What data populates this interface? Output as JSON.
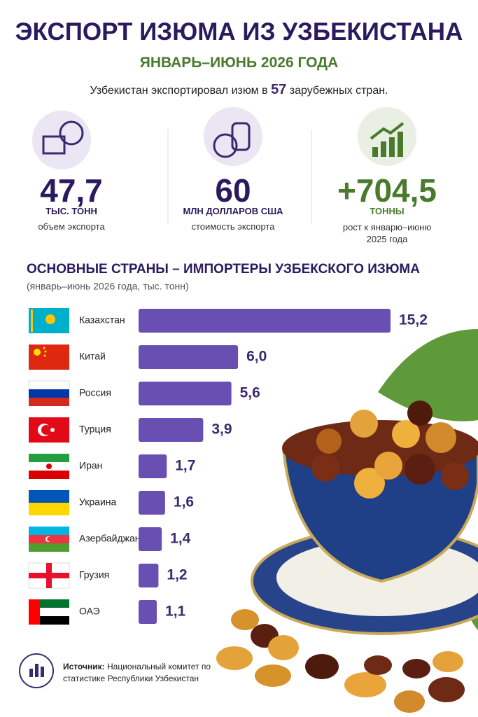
{
  "header": {
    "title": "ЭКСПОРТ ИЗЮМА ИЗ УЗБЕКИСТАНА",
    "subtitle": "ЯНВАРЬ–ИЮНЬ 2026 ГОДА",
    "lead_before": "Узбекистан экспортировал изюм в",
    "lead_number": "57",
    "lead_after": "зарубежных стран."
  },
  "stats": [
    {
      "value": "47,7",
      "unit": "ТЫС. ТОНН",
      "label": "объем экспорта"
    },
    {
      "value": "60",
      "unit": "МЛН ДОЛЛАРОВ США",
      "label": "стоимость экспорта"
    },
    {
      "value": "+704,5",
      "unit": "ТОННЫ",
      "label": "рост к январю–июню 2025 года"
    }
  ],
  "chart_data": {
    "type": "hbar",
    "title": "ОСНОВНЫЕ СТРАНЫ – ИМПОРТЕРЫ УЗБЕКСКОГО ИЗЮМА",
    "subtitle": "(январь–июнь 2026 года, тыс. тонн)",
    "categories": [
      "Казахстан",
      "Китай",
      "Россия",
      "Турция",
      "Иран",
      "Украина",
      "Азербайджан",
      "Грузия",
      "ОАЭ"
    ],
    "values": [
      15.2,
      6.0,
      5.6,
      3.9,
      1.7,
      1.6,
      1.4,
      1.2,
      1.1
    ],
    "value_labels": [
      "15,2",
      "6,0",
      "5,6",
      "3,9",
      "1,7",
      "1,6",
      "1,4",
      "1,2",
      "1,1"
    ],
    "color": "#6a4fb3"
  },
  "source": {
    "label": "Источник:",
    "text": "Национальный комитет по статистике Республики Узбекистан"
  }
}
